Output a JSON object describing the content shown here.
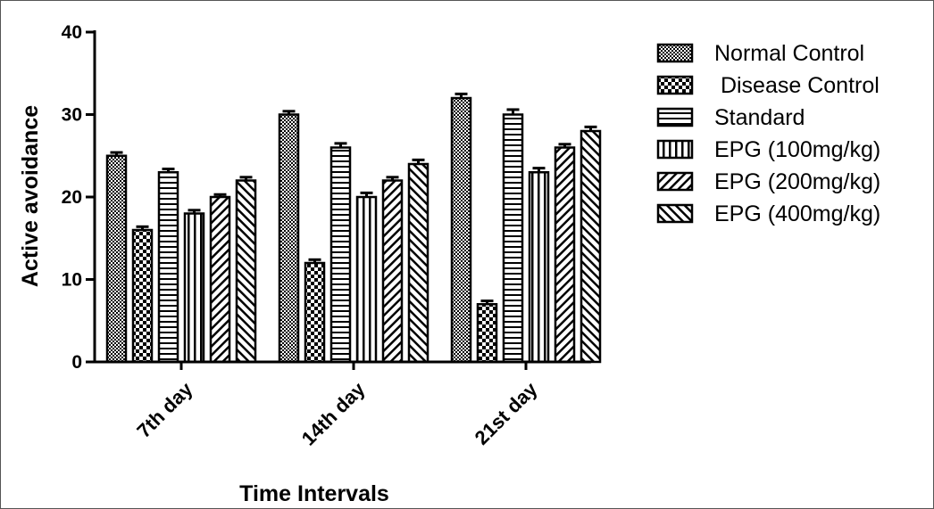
{
  "chart_data": {
    "type": "bar",
    "title": "",
    "xlabel": "Time Intervals",
    "ylabel": "Active avoidance",
    "ylim": [
      0,
      40
    ],
    "yticks": [
      0,
      10,
      20,
      30,
      40
    ],
    "categories": [
      "7th day",
      "14th day",
      "21st day"
    ],
    "legend_position": "right",
    "series": [
      {
        "name": "Normal Control",
        "pattern": "checker-fine",
        "values": [
          25,
          30,
          32
        ],
        "errors": [
          0.4,
          0.4,
          0.5
        ]
      },
      {
        "name": " Disease Control",
        "pattern": "checker-coarse",
        "values": [
          16,
          12,
          7
        ],
        "errors": [
          0.4,
          0.4,
          0.4
        ]
      },
      {
        "name": "Standard",
        "pattern": "horizontal",
        "values": [
          23,
          26,
          30
        ],
        "errors": [
          0.4,
          0.5,
          0.6
        ]
      },
      {
        "name": "EPG (100mg/kg)",
        "pattern": "vertical",
        "values": [
          18,
          20,
          23
        ],
        "errors": [
          0.4,
          0.5,
          0.5
        ]
      },
      {
        "name": "EPG (200mg/kg)",
        "pattern": "diag-up",
        "values": [
          20,
          22,
          26
        ],
        "errors": [
          0.3,
          0.4,
          0.4
        ]
      },
      {
        "name": "EPG (400mg/kg)",
        "pattern": "diag-down",
        "values": [
          22,
          24,
          28
        ],
        "errors": [
          0.4,
          0.5,
          0.5
        ]
      }
    ]
  }
}
